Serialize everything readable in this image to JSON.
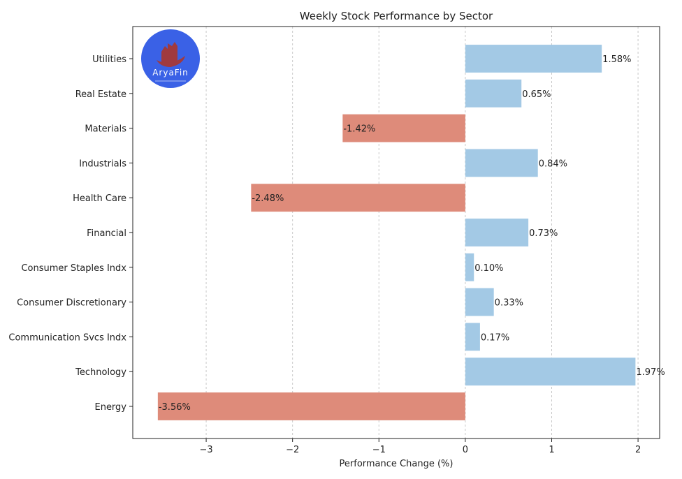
{
  "chart_data": {
    "type": "bar",
    "orientation": "horizontal",
    "title": "Weekly Stock Performance by Sector",
    "xlabel": "Performance Change (%)",
    "ylabel": "",
    "xlim": [
      -3.85,
      2.25
    ],
    "xticks": [
      -3,
      -2,
      -1,
      0,
      1,
      2
    ],
    "xtick_labels": [
      "−3",
      "−2",
      "−1",
      "0",
      "1",
      "2"
    ],
    "grid": "vertical dashed",
    "categories": [
      "Utilities",
      "Real Estate",
      "Materials",
      "Industrials",
      "Health Care",
      "Financial",
      "Consumer Staples Indx",
      "Consumer Discretionary",
      "Communication Svcs Indx",
      "Technology",
      "Energy"
    ],
    "values": [
      1.58,
      0.65,
      -1.42,
      0.84,
      -2.48,
      0.73,
      0.1,
      0.33,
      0.17,
      1.97,
      -3.56
    ],
    "value_labels": [
      "1.58%",
      "0.65%",
      "-1.42%",
      "0.84%",
      "-2.48%",
      "0.73%",
      "0.10%",
      "0.33%",
      "0.17%",
      "1.97%",
      "-3.56%"
    ],
    "colors": {
      "positive": "#a3c9e5",
      "negative": "#de8b7a"
    }
  },
  "logo": {
    "text": "AryaFin",
    "bg_color": "#3a61e6",
    "mark_color": "#a03a3f"
  }
}
